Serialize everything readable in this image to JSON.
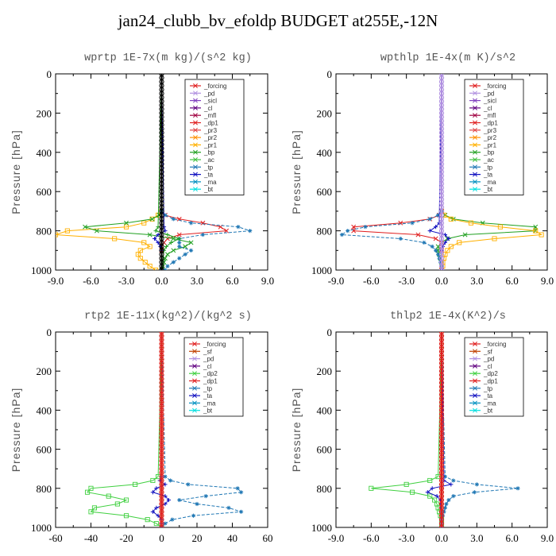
{
  "page_title": "jan24_clubb_bv_efoldp  BUDGET at255E,-12N",
  "y_axis_label": "Pressure [hPa]",
  "chart_data": [
    {
      "id": "wprtp",
      "type": "line",
      "title": "wprtp  1E-7x(m kg)/(s^2 kg)",
      "ylabel": "Pressure [hPa]",
      "xlim": [
        -9,
        9
      ],
      "ylim": [
        1000,
        0
      ],
      "xticks": [
        -9.0,
        -6.0,
        -3.0,
        0.0,
        3.0,
        6.0,
        9.0
      ],
      "xtick_labels": [
        "-9.0",
        "-6.0",
        "-3.0",
        "0.0",
        "3.0",
        "6.0",
        "9.0"
      ],
      "yticks": [
        0,
        200,
        400,
        600,
        800,
        1000
      ],
      "ytick_labels": [
        "0",
        "200",
        "400",
        "600",
        "800",
        "1000"
      ],
      "legend": [
        "_forcing",
        "_pd",
        "_sicl",
        "_cl",
        "_mfl",
        "_dp1",
        "_pr3",
        "_pr2",
        "_pr1",
        "_bp",
        "_ac",
        "_tp",
        "_ta",
        "_ma",
        "_bt"
      ],
      "series": [
        {
          "name": "_forcing",
          "color": "#000000",
          "marker": "circle",
          "p": [
            0,
            1000
          ],
          "v": [
            0,
            0
          ]
        },
        {
          "name": "_dp1",
          "color": "#e02020",
          "marker": "x",
          "p": [
            0,
            700,
            720,
            740,
            760,
            780,
            800,
            820,
            840,
            860,
            880,
            900,
            1000
          ],
          "v": [
            0,
            0,
            0.3,
            1.5,
            3.5,
            5.0,
            5.5,
            1.5,
            0.5,
            0.2,
            0,
            0,
            0
          ]
        },
        {
          "name": "_pr1",
          "color": "#ffb000",
          "marker": "square",
          "p": [
            0,
            700,
            720,
            740,
            760,
            780,
            800,
            820,
            840,
            860,
            880,
            900,
            920,
            940,
            960,
            980,
            1000
          ],
          "v": [
            0,
            0,
            -0.3,
            -0.8,
            -1.5,
            -3.0,
            -8.0,
            -9.0,
            -4.0,
            -1.5,
            -1.0,
            -1.8,
            -2.0,
            -1.8,
            -1.4,
            -1.0,
            -0.5
          ]
        },
        {
          "name": "_ac",
          "color": "#20a020",
          "marker": "x",
          "p": [
            0,
            700,
            720,
            740,
            760,
            780,
            800,
            820,
            840,
            860,
            880,
            900,
            920,
            940,
            960,
            980,
            1000
          ],
          "v": [
            0,
            0,
            -0.2,
            -0.8,
            -3.0,
            -6.5,
            -5.5,
            -1.0,
            1.0,
            2.5,
            2.0,
            1.0,
            0.5,
            0.3,
            0.2,
            0.1,
            0
          ]
        },
        {
          "name": "_tp",
          "color": "#1f77b4",
          "marker": "star",
          "p": [
            0,
            700,
            720,
            740,
            760,
            780,
            800,
            820,
            840,
            860,
            880,
            900,
            920,
            940,
            960,
            980,
            1000
          ],
          "v": [
            0,
            0,
            0.3,
            1.0,
            2.5,
            6.5,
            7.5,
            3.5,
            1.5,
            1.5,
            1.5,
            2.5,
            2.0,
            1.5,
            1.0,
            0.5,
            0.3
          ]
        },
        {
          "name": "_bp",
          "color": "#20a020",
          "marker": "plus",
          "p": [
            0,
            780,
            800,
            820,
            840,
            860,
            880,
            900,
            1000
          ],
          "v": [
            0,
            -0.3,
            -0.5,
            0.5,
            1.5,
            0.8,
            0.4,
            0.2,
            0
          ]
        },
        {
          "name": "_ta",
          "color": "#1010c0",
          "marker": "plus",
          "p": [
            0,
            780,
            800,
            820,
            840,
            860,
            880,
            900,
            1000
          ],
          "v": [
            0,
            0.2,
            0.3,
            -0.3,
            -0.6,
            -0.3,
            -0.1,
            0,
            0
          ]
        }
      ]
    },
    {
      "id": "wpthlp",
      "type": "line",
      "title": "wpthlp  1E-4x(m K)/s^2",
      "ylabel": "Pressure [hPa]",
      "xlim": [
        -9,
        9
      ],
      "ylim": [
        1000,
        0
      ],
      "xticks": [
        -9.0,
        -6.0,
        -3.0,
        0.0,
        3.0,
        6.0,
        9.0
      ],
      "xtick_labels": [
        "-9.0",
        "-6.0",
        "-3.0",
        "0.0",
        "3.0",
        "6.0",
        "9.0"
      ],
      "yticks": [
        0,
        200,
        400,
        600,
        800,
        1000
      ],
      "ytick_labels": [
        "0",
        "200",
        "400",
        "600",
        "800",
        "1000"
      ],
      "legend": [
        "_forcing",
        "_pd",
        "_sicl",
        "_cl",
        "_mfl",
        "_dp1",
        "_pr3",
        "_pr2",
        "_pr1",
        "_bp",
        "_ac",
        "_tp",
        "_ta",
        "_ma",
        "_bt"
      ],
      "series": [
        {
          "name": "_forcing",
          "color": "#b090e0",
          "marker": "circle",
          "p": [
            0,
            1000
          ],
          "v": [
            0,
            0
          ]
        },
        {
          "name": "_ac",
          "color": "#20a020",
          "marker": "x",
          "p": [
            0,
            700,
            720,
            740,
            760,
            780,
            800,
            820,
            840,
            860,
            880,
            900,
            920,
            940,
            960,
            980,
            1000
          ],
          "v": [
            0,
            0,
            0.3,
            1.0,
            3.5,
            8.0,
            8.0,
            2.0,
            0.5,
            0,
            -0.3,
            -0.3,
            -0.2,
            -0.1,
            0,
            0,
            0
          ]
        },
        {
          "name": "_pr1",
          "color": "#ffb000",
          "marker": "square",
          "p": [
            0,
            700,
            720,
            740,
            760,
            780,
            800,
            820,
            840,
            860,
            880,
            900,
            920,
            940,
            960,
            980,
            1000
          ],
          "v": [
            0,
            0,
            0.2,
            0.8,
            2.5,
            5.0,
            8.0,
            8.5,
            4.5,
            1.5,
            0.8,
            0.5,
            0.3,
            0.2,
            0.1,
            0.1,
            0
          ]
        },
        {
          "name": "_dp1",
          "color": "#e02020",
          "marker": "x",
          "p": [
            0,
            700,
            720,
            740,
            760,
            780,
            800,
            820,
            840,
            860,
            880,
            900,
            1000
          ],
          "v": [
            0,
            0,
            -0.2,
            -1.0,
            -3.5,
            -7.5,
            -7.5,
            -2.0,
            -0.5,
            0,
            0,
            0,
            0
          ]
        },
        {
          "name": "_tp",
          "color": "#1f77b4",
          "marker": "star",
          "p": [
            0,
            700,
            720,
            740,
            760,
            780,
            800,
            820,
            840,
            860,
            880,
            900,
            920,
            940,
            960,
            980,
            1000
          ],
          "v": [
            0,
            0,
            -0.3,
            -1.0,
            -2.5,
            -6.5,
            -8.0,
            -8.5,
            -3.5,
            -1.5,
            -0.8,
            -0.5,
            -0.3,
            -0.2,
            -0.1,
            0,
            0
          ]
        },
        {
          "name": "_ta",
          "color": "#1010c0",
          "marker": "plus",
          "p": [
            0,
            760,
            780,
            800,
            820,
            840,
            860,
            880,
            900,
            1000
          ],
          "v": [
            0,
            -0.2,
            -0.5,
            -1.0,
            0.3,
            0.6,
            0.3,
            0.1,
            0,
            0
          ]
        }
      ]
    },
    {
      "id": "rtp2",
      "type": "line",
      "title": "rtp2  1E-11x(kg^2)/(kg^2 s)",
      "ylabel": "Pressure [hPa]",
      "xlim": [
        -60,
        60
      ],
      "ylim": [
        1000,
        0
      ],
      "xticks": [
        -60,
        -40,
        -20,
        0,
        20,
        40,
        60
      ],
      "xtick_labels": [
        "-60",
        "-40",
        "-20",
        "0",
        "20",
        "40",
        "60"
      ],
      "yticks": [
        0,
        200,
        400,
        600,
        800,
        1000
      ],
      "ytick_labels": [
        "0",
        "200",
        "400",
        "600",
        "800",
        "1000"
      ],
      "legend": [
        "_forcing",
        "_sf",
        "_pd",
        "_cl",
        "_dp2",
        "_dp1",
        "_tp",
        "_ta",
        "_ma",
        "_bt"
      ],
      "series": [
        {
          "name": "_forcing",
          "color": "#e02020",
          "marker": "circle",
          "p": [
            0,
            1000
          ],
          "v": [
            0,
            0
          ]
        },
        {
          "name": "_sf",
          "color": "#c04000",
          "marker": "plus",
          "p": [
            0,
            1000
          ],
          "v": [
            0,
            0
          ]
        },
        {
          "name": "_dp1",
          "color": "#40d040",
          "marker": "square",
          "p": [
            0,
            740,
            760,
            780,
            800,
            820,
            840,
            860,
            880,
            900,
            920,
            940,
            960,
            980,
            1000
          ],
          "v": [
            0,
            -2,
            -5,
            -15,
            -40,
            -42,
            -30,
            -20,
            -25,
            -38,
            -40,
            -20,
            -8,
            -3,
            0
          ]
        },
        {
          "name": "_tp",
          "color": "#1f77b4",
          "marker": "star",
          "p": [
            0,
            740,
            760,
            780,
            800,
            820,
            840,
            860,
            880,
            900,
            920,
            940,
            960,
            980,
            1000
          ],
          "v": [
            0,
            2,
            5,
            15,
            43,
            45,
            25,
            10,
            20,
            38,
            45,
            18,
            6,
            2,
            0
          ]
        },
        {
          "name": "_ta",
          "color": "#1010c0",
          "marker": "plus",
          "p": [
            0,
            740,
            760,
            780,
            800,
            820,
            840,
            860,
            880,
            900,
            920,
            940,
            960,
            980,
            1000
          ],
          "v": [
            0,
            0,
            -1,
            2,
            -3,
            -5,
            2,
            4,
            2,
            -3,
            -5,
            -2,
            0,
            0,
            0
          ]
        }
      ]
    },
    {
      "id": "thlp2",
      "type": "line",
      "title": "thlp2  1E-4x(K^2)/s",
      "ylabel": "Pressure [hPa]",
      "xlim": [
        -9,
        9
      ],
      "ylim": [
        1000,
        0
      ],
      "xticks": [
        -9.0,
        -6.0,
        -3.0,
        0.0,
        3.0,
        6.0,
        9.0
      ],
      "xtick_labels": [
        "-9.0",
        "-6.0",
        "-3.0",
        "0.0",
        "3.0",
        "6.0",
        "9.0"
      ],
      "yticks": [
        0,
        200,
        400,
        600,
        800,
        1000
      ],
      "ytick_labels": [
        "0",
        "200",
        "400",
        "600",
        "800",
        "1000"
      ],
      "legend": [
        "_forcing",
        "_sf",
        "_pd",
        "_cl",
        "_dp2",
        "_dp1",
        "_tp",
        "_ta",
        "_ma",
        "_bt"
      ],
      "series": [
        {
          "name": "_forcing",
          "color": "#e02020",
          "marker": "circle",
          "p": [
            0,
            1000
          ],
          "v": [
            0,
            0
          ]
        },
        {
          "name": "_sf",
          "color": "#c04000",
          "marker": "plus",
          "p": [
            0,
            1000
          ],
          "v": [
            0,
            0
          ]
        },
        {
          "name": "_dp1",
          "color": "#40d040",
          "marker": "square",
          "p": [
            0,
            740,
            760,
            780,
            800,
            820,
            840,
            860,
            880,
            900,
            920,
            940,
            960,
            980,
            1000
          ],
          "v": [
            0,
            -0.3,
            -1.0,
            -3.0,
            -6.0,
            -2.5,
            -1.0,
            -0.6,
            -0.4,
            -0.3,
            -0.2,
            -0.1,
            0,
            0,
            0
          ]
        },
        {
          "name": "_tp",
          "color": "#1f77b4",
          "marker": "star",
          "p": [
            0,
            740,
            760,
            780,
            800,
            820,
            840,
            860,
            880,
            900,
            920,
            940,
            960,
            980,
            1000
          ],
          "v": [
            0,
            0.3,
            1.0,
            3.0,
            6.5,
            2.8,
            1.0,
            0.6,
            0.4,
            0.3,
            0.2,
            0.1,
            0,
            0,
            0
          ]
        },
        {
          "name": "_ta",
          "color": "#1010c0",
          "marker": "plus",
          "p": [
            0,
            760,
            780,
            800,
            820,
            840,
            860,
            1000
          ],
          "v": [
            0,
            0.2,
            0.8,
            -0.8,
            -1.2,
            -0.4,
            -0.1,
            0
          ]
        }
      ]
    }
  ],
  "legend_colors": {
    "_forcing": "#e02020",
    "_pd": "#b090e0",
    "_sicl": "#8040c0",
    "_cl": "#600080",
    "_mfl": "#a00040",
    "_dp1": "#e02020",
    "_pr3": "#e04040",
    "_pr2": "#ff9000",
    "_pr1": "#ffb000",
    "_bp": "#20a020",
    "_ac": "#40c040",
    "_tp": "#1f77b4",
    "_ta": "#1010c0",
    "_ma": "#0090c0",
    "_bt": "#00e0e0",
    "_sf": "#c04000",
    "_dp2": "#40d040"
  }
}
